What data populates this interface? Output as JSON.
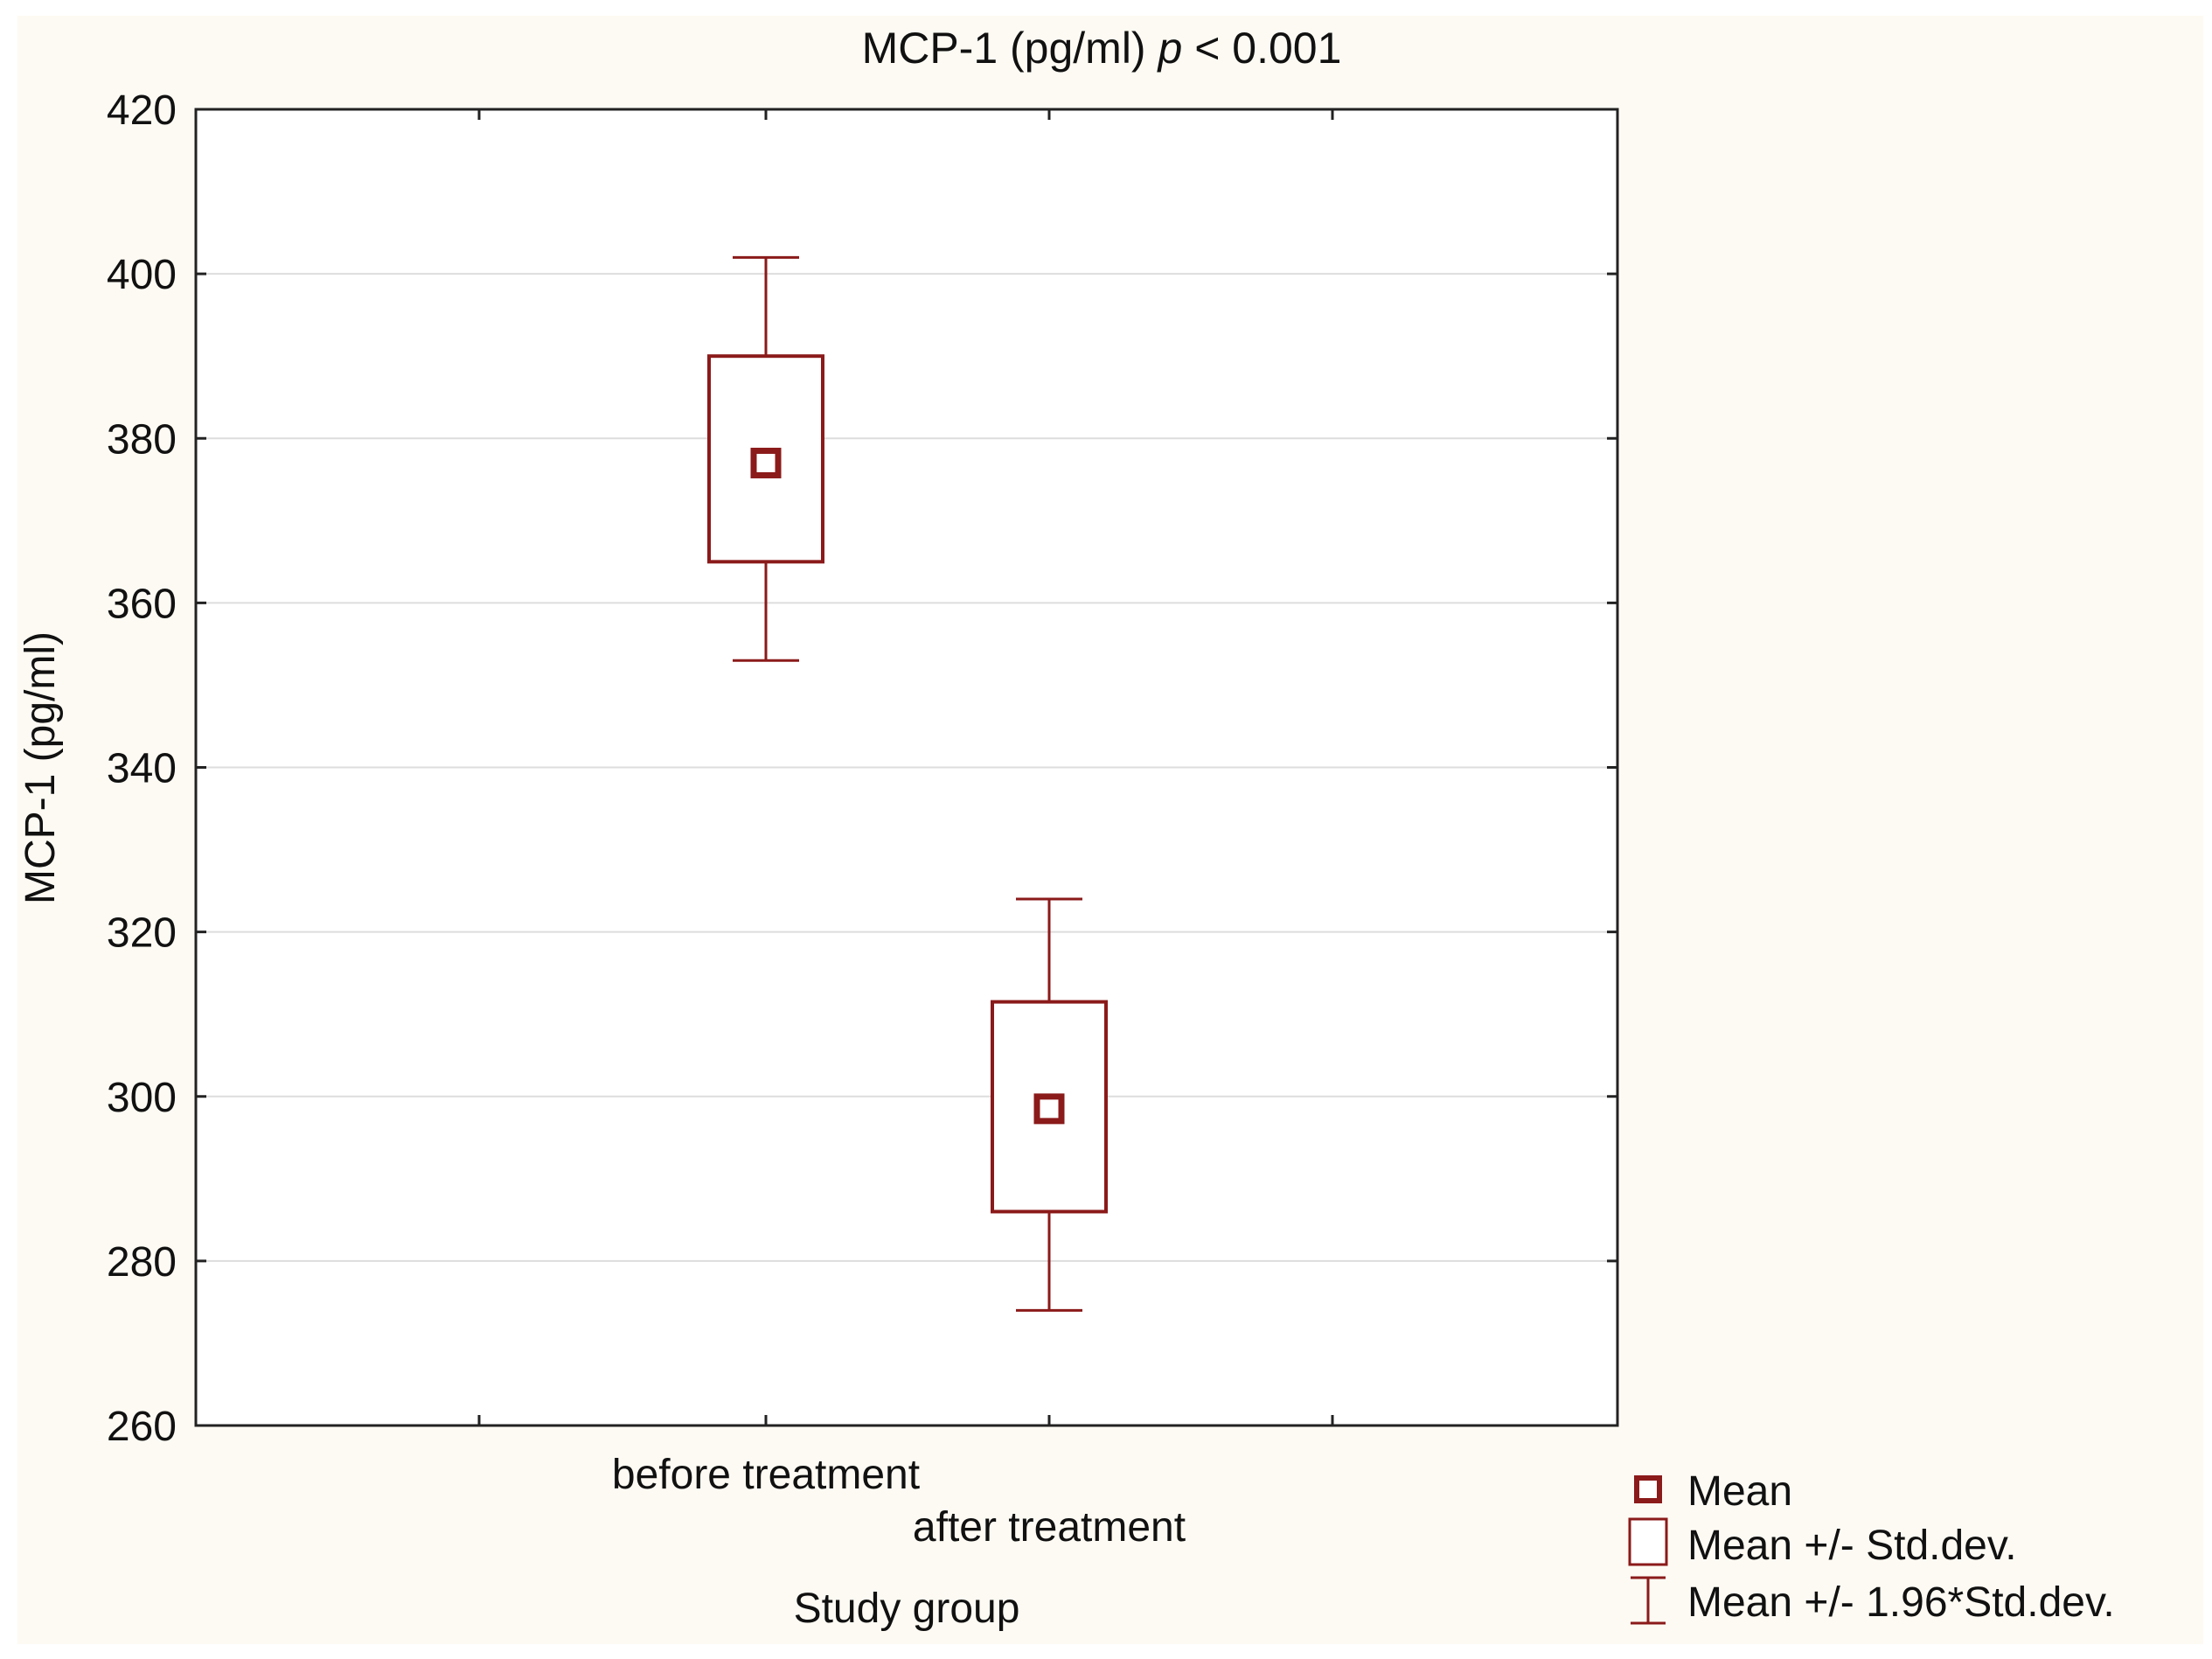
{
  "chart_data": {
    "type": "box",
    "title": "MCP-1 (pg/ml)",
    "title_p": "p",
    "title_rest": " < 0.001",
    "xlabel": "Study group",
    "ylabel": "MCP-1 (pg/ml)",
    "ylim": [
      260,
      420
    ],
    "yticks": [
      260,
      280,
      300,
      320,
      340,
      360,
      380,
      400,
      420
    ],
    "grid": true,
    "legend_position": "bottom-right",
    "categories": [
      "before treatment",
      "after treatment"
    ],
    "groups": [
      {
        "category": "before treatment",
        "mean": 377,
        "sd_low": 365,
        "sd_high": 390,
        "ci_low": 353,
        "ci_high": 402
      },
      {
        "category": "after treatment",
        "mean": 298.5,
        "sd_low": 286,
        "sd_high": 311.5,
        "ci_low": 274,
        "ci_high": 324
      }
    ],
    "legend": [
      {
        "key": "mean",
        "label": "Mean"
      },
      {
        "key": "sd",
        "label": "Mean +/- Std.dev."
      },
      {
        "key": "ci",
        "label": "Mean +/- 1.96*Std.dev."
      }
    ],
    "colors": {
      "series": "#8b1a1a",
      "background": "#fdfaf3",
      "plot": "#ffffff",
      "grid": "#dddddd"
    }
  }
}
